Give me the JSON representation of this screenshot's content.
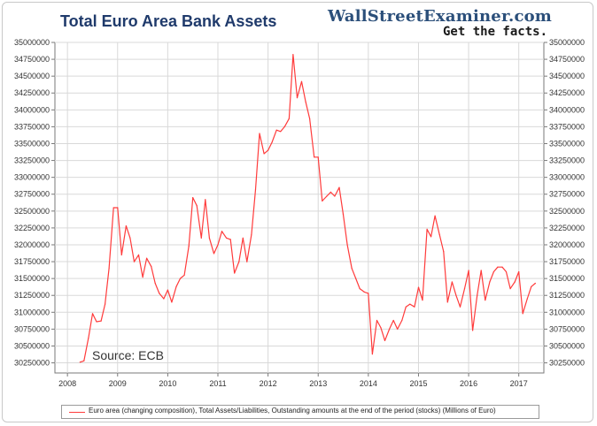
{
  "header": {
    "title": "Total Euro Area Bank Assets",
    "brand": "WallStreetExaminer.com",
    "tagline": "Get the facts."
  },
  "source_note": "Source: ECB",
  "legend": {
    "label": "Euro area (changing composition), Total Assets/Liabilities, Outstanding amounts at the end of the period (stocks) (Millions of Euro)"
  },
  "colors": {
    "series": "#ff3b3b",
    "grid": "#d9d9d9",
    "axis": "#7a7a7a",
    "title": "#1f3a6b"
  },
  "chart_data": {
    "type": "line",
    "title": "Total Euro Area Bank Assets",
    "xlabel": "",
    "ylabel": "",
    "x_ticks": [
      "2008",
      "2009",
      "2010",
      "2011",
      "2012",
      "2013",
      "2014",
      "2015",
      "2016",
      "2017"
    ],
    "xlim": [
      2007.75,
      2017.5
    ],
    "y_ticks": [
      30250000,
      30500000,
      30750000,
      31000000,
      31250000,
      31500000,
      31750000,
      32000000,
      32250000,
      32500000,
      32750000,
      33000000,
      33250000,
      33500000,
      33750000,
      34000000,
      34250000,
      34500000,
      34750000,
      35000000
    ],
    "y_tick_labels": [
      "30250000",
      "30500000",
      "30750000",
      "31000000",
      "31250000",
      "31500000",
      "31750000",
      "32000000",
      "32250000",
      "32500000",
      "32750000",
      "33000000",
      "33250000",
      "33500000",
      "33750000",
      "34000000",
      "34250000",
      "34500000",
      "34750000",
      "35000000"
    ],
    "ylim": [
      30100000,
      35000000
    ],
    "grid": true,
    "legend_position": "bottom",
    "series": [
      {
        "name": "Euro area (changing composition), Total Assets/Liabilities, Outstanding amounts at the end of the period (stocks) (Millions of Euro)",
        "points": [
          [
            2008.25,
            30260000
          ],
          [
            2008.33,
            30280000
          ],
          [
            2008.42,
            30620000
          ],
          [
            2008.5,
            30980000
          ],
          [
            2008.58,
            30860000
          ],
          [
            2008.67,
            30870000
          ],
          [
            2008.75,
            31120000
          ],
          [
            2008.83,
            31650000
          ],
          [
            2008.92,
            32550000
          ],
          [
            2009.0,
            32550000
          ],
          [
            2009.08,
            31850000
          ],
          [
            2009.17,
            32280000
          ],
          [
            2009.25,
            32100000
          ],
          [
            2009.33,
            31750000
          ],
          [
            2009.42,
            31850000
          ],
          [
            2009.5,
            31520000
          ],
          [
            2009.58,
            31800000
          ],
          [
            2009.67,
            31680000
          ],
          [
            2009.75,
            31430000
          ],
          [
            2009.83,
            31280000
          ],
          [
            2009.92,
            31200000
          ],
          [
            2010.0,
            31330000
          ],
          [
            2010.08,
            31150000
          ],
          [
            2010.17,
            31380000
          ],
          [
            2010.25,
            31500000
          ],
          [
            2010.33,
            31550000
          ],
          [
            2010.42,
            31980000
          ],
          [
            2010.5,
            32700000
          ],
          [
            2010.58,
            32580000
          ],
          [
            2010.67,
            32100000
          ],
          [
            2010.75,
            32670000
          ],
          [
            2010.83,
            32100000
          ],
          [
            2010.92,
            31870000
          ],
          [
            2011.0,
            32000000
          ],
          [
            2011.08,
            32200000
          ],
          [
            2011.17,
            32100000
          ],
          [
            2011.25,
            32080000
          ],
          [
            2011.33,
            31580000
          ],
          [
            2011.42,
            31750000
          ],
          [
            2011.5,
            32100000
          ],
          [
            2011.58,
            31750000
          ],
          [
            2011.67,
            32150000
          ],
          [
            2011.75,
            32820000
          ],
          [
            2011.83,
            33650000
          ],
          [
            2011.92,
            33350000
          ],
          [
            2012.0,
            33400000
          ],
          [
            2012.08,
            33520000
          ],
          [
            2012.17,
            33700000
          ],
          [
            2012.25,
            33680000
          ],
          [
            2012.33,
            33750000
          ],
          [
            2012.42,
            33870000
          ],
          [
            2012.5,
            34820000
          ],
          [
            2012.58,
            34180000
          ],
          [
            2012.67,
            34420000
          ],
          [
            2012.75,
            34120000
          ],
          [
            2012.83,
            33870000
          ],
          [
            2012.92,
            33300000
          ],
          [
            2013.0,
            33300000
          ],
          [
            2013.08,
            32650000
          ],
          [
            2013.17,
            32720000
          ],
          [
            2013.25,
            32780000
          ],
          [
            2013.33,
            32720000
          ],
          [
            2013.42,
            32850000
          ],
          [
            2013.5,
            32450000
          ],
          [
            2013.58,
            32000000
          ],
          [
            2013.67,
            31650000
          ],
          [
            2013.75,
            31500000
          ],
          [
            2013.83,
            31350000
          ],
          [
            2013.92,
            31300000
          ],
          [
            2014.0,
            31280000
          ],
          [
            2014.08,
            30380000
          ],
          [
            2014.17,
            30880000
          ],
          [
            2014.25,
            30770000
          ],
          [
            2014.33,
            30580000
          ],
          [
            2014.42,
            30750000
          ],
          [
            2014.5,
            30880000
          ],
          [
            2014.58,
            30750000
          ],
          [
            2014.67,
            30880000
          ],
          [
            2014.75,
            31080000
          ],
          [
            2014.83,
            31120000
          ],
          [
            2014.92,
            31080000
          ],
          [
            2015.0,
            31370000
          ],
          [
            2015.08,
            31180000
          ],
          [
            2015.17,
            32230000
          ],
          [
            2015.25,
            32120000
          ],
          [
            2015.33,
            32430000
          ],
          [
            2015.42,
            32150000
          ],
          [
            2015.5,
            31900000
          ],
          [
            2015.58,
            31150000
          ],
          [
            2015.67,
            31450000
          ],
          [
            2015.75,
            31250000
          ],
          [
            2015.83,
            31080000
          ],
          [
            2015.92,
            31350000
          ],
          [
            2016.0,
            31620000
          ],
          [
            2016.08,
            30730000
          ],
          [
            2016.17,
            31250000
          ],
          [
            2016.25,
            31620000
          ],
          [
            2016.33,
            31180000
          ],
          [
            2016.42,
            31450000
          ],
          [
            2016.5,
            31600000
          ],
          [
            2016.58,
            31670000
          ],
          [
            2016.67,
            31670000
          ],
          [
            2016.75,
            31600000
          ],
          [
            2016.83,
            31350000
          ],
          [
            2016.92,
            31450000
          ],
          [
            2017.0,
            31600000
          ],
          [
            2017.08,
            30980000
          ],
          [
            2017.17,
            31200000
          ],
          [
            2017.25,
            31380000
          ],
          [
            2017.33,
            31430000
          ]
        ]
      }
    ]
  }
}
